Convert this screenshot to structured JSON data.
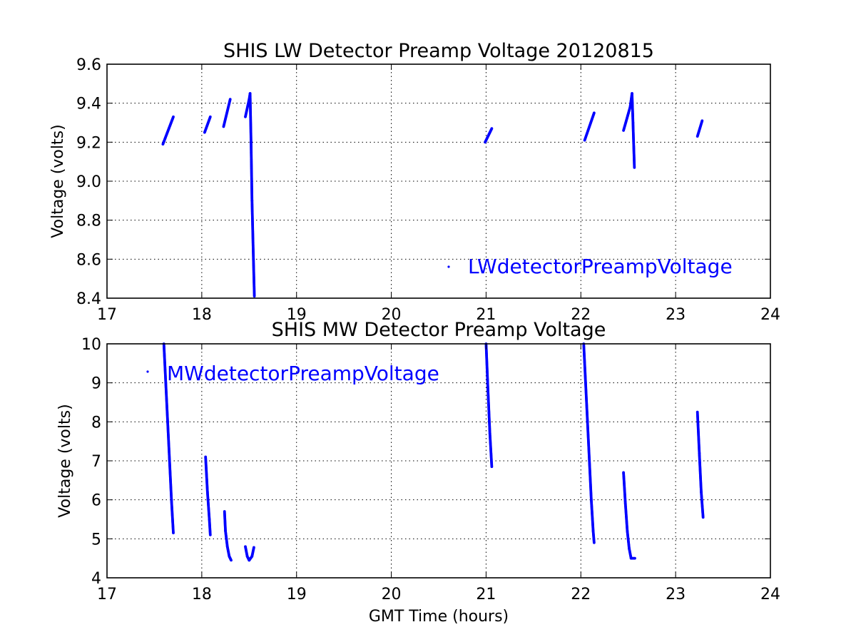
{
  "chart_data": [
    {
      "type": "scatter",
      "title": "SHIS LW Detector Preamp Voltage 20120815",
      "xlabel": "",
      "ylabel": "Voltage (volts)",
      "xlim": [
        17,
        24
      ],
      "ylim": [
        8.4,
        9.6
      ],
      "xticks": [
        17,
        18,
        19,
        20,
        21,
        22,
        23,
        24
      ],
      "xtick_labels": [
        "17",
        "18",
        "19",
        "20",
        "21",
        "22",
        "23",
        "24"
      ],
      "yticks": [
        8.4,
        8.6,
        8.8,
        9.0,
        9.2,
        9.4,
        9.6
      ],
      "ytick_labels": [
        "8.4",
        "8.6",
        "8.8",
        "9.0",
        "9.2",
        "9.4",
        "9.6"
      ],
      "grid": true,
      "legend_position": "lower-right",
      "series": [
        {
          "name": "LWdetectorPreampVoltage",
          "color": "#0000ff",
          "segments": [
            [
              [
                17.59,
                9.19
              ],
              [
                17.7,
                9.33
              ]
            ],
            [
              [
                18.03,
                9.25
              ],
              [
                18.09,
                9.33
              ]
            ],
            [
              [
                18.23,
                9.28
              ],
              [
                18.3,
                9.42
              ]
            ],
            [
              [
                18.46,
                9.33
              ],
              [
                18.5,
                9.42
              ],
              [
                18.51,
                9.45
              ]
            ],
            [
              [
                18.51,
                9.45
              ],
              [
                18.52,
                9.2
              ],
              [
                18.53,
                8.9
              ],
              [
                18.545,
                8.6
              ],
              [
                18.555,
                8.41
              ]
            ],
            [
              [
                20.99,
                9.2
              ],
              [
                21.06,
                9.27
              ]
            ],
            [
              [
                22.04,
                9.21
              ],
              [
                22.14,
                9.35
              ]
            ],
            [
              [
                22.45,
                9.26
              ],
              [
                22.52,
                9.38
              ],
              [
                22.54,
                9.45
              ]
            ],
            [
              [
                22.54,
                9.45
              ],
              [
                22.55,
                9.3
              ],
              [
                22.565,
                9.07
              ]
            ],
            [
              [
                23.23,
                9.23
              ],
              [
                23.28,
                9.31
              ]
            ]
          ]
        }
      ]
    },
    {
      "type": "scatter",
      "title": "SHIS MW Detector Preamp Voltage",
      "xlabel": "GMT Time (hours)",
      "ylabel": "Voltage (volts)",
      "xlim": [
        17,
        24
      ],
      "ylim": [
        4,
        10
      ],
      "xticks": [
        17,
        18,
        19,
        20,
        21,
        22,
        23,
        24
      ],
      "xtick_labels": [
        "17",
        "18",
        "19",
        "20",
        "21",
        "22",
        "23",
        "24"
      ],
      "yticks": [
        4,
        5,
        6,
        7,
        8,
        9,
        10
      ],
      "ytick_labels": [
        "4",
        "5",
        "6",
        "7",
        "8",
        "9",
        "10"
      ],
      "grid": true,
      "legend_position": "upper-left",
      "series": [
        {
          "name": "MWdetectorPreampVoltage",
          "color": "#0000ff",
          "segments": [
            [
              [
                17.6,
                10.0
              ],
              [
                17.62,
                9.0
              ],
              [
                17.64,
                8.0
              ],
              [
                17.66,
                7.0
              ],
              [
                17.68,
                6.0
              ],
              [
                17.7,
                5.15
              ]
            ],
            [
              [
                18.04,
                7.1
              ],
              [
                18.06,
                6.2
              ],
              [
                18.08,
                5.5
              ],
              [
                18.09,
                5.1
              ]
            ],
            [
              [
                18.24,
                5.7
              ],
              [
                18.25,
                5.2
              ],
              [
                18.27,
                4.8
              ],
              [
                18.29,
                4.55
              ],
              [
                18.31,
                4.45
              ]
            ],
            [
              [
                18.46,
                4.8
              ],
              [
                18.48,
                4.55
              ],
              [
                18.5,
                4.45
              ],
              [
                18.53,
                4.55
              ],
              [
                18.55,
                4.78
              ]
            ],
            [
              [
                21.0,
                10.0
              ],
              [
                21.02,
                8.8
              ],
              [
                21.04,
                7.7
              ],
              [
                21.06,
                6.85
              ]
            ],
            [
              [
                22.03,
                10.0
              ],
              [
                22.05,
                9.0
              ],
              [
                22.07,
                8.0
              ],
              [
                22.09,
                7.0
              ],
              [
                22.11,
                6.0
              ],
              [
                22.13,
                5.2
              ],
              [
                22.14,
                4.9
              ]
            ],
            [
              [
                22.45,
                6.7
              ],
              [
                22.47,
                5.9
              ],
              [
                22.49,
                5.2
              ],
              [
                22.51,
                4.75
              ],
              [
                22.53,
                4.5
              ],
              [
                22.57,
                4.5
              ]
            ],
            [
              [
                23.23,
                8.25
              ],
              [
                23.25,
                7.2
              ],
              [
                23.27,
                6.2
              ],
              [
                23.29,
                5.55
              ]
            ]
          ]
        }
      ]
    }
  ]
}
